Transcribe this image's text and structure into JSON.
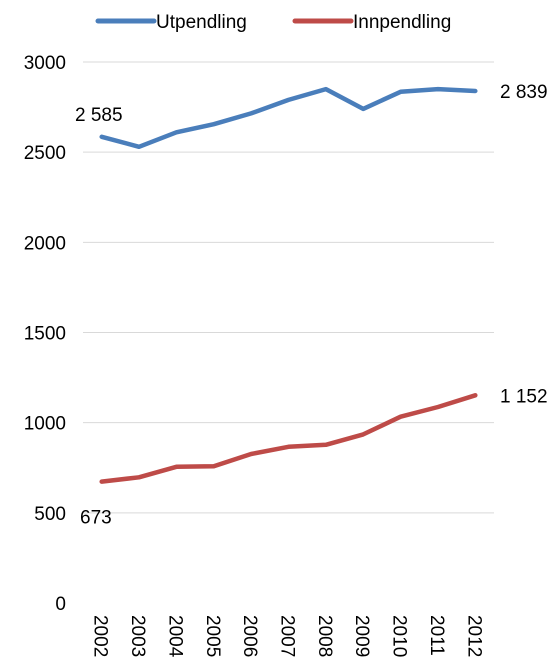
{
  "chart_data": {
    "type": "line",
    "title": "",
    "xlabel": "",
    "ylabel": "",
    "x": [
      "2002",
      "2003",
      "2004",
      "2005",
      "2006",
      "2007",
      "2008",
      "2009",
      "2010",
      "2011",
      "2012"
    ],
    "ylim": [
      0,
      3000
    ],
    "yticks": [
      0,
      500,
      1000,
      1500,
      2000,
      2500,
      3000
    ],
    "grid": true,
    "legend_position": "top",
    "series": [
      {
        "name": "Utpendling",
        "color": "#4a7ebb",
        "values": [
          2585,
          2530,
          2610,
          2655,
          2715,
          2790,
          2850,
          2740,
          2835,
          2850,
          2839
        ]
      },
      {
        "name": "Innpendling",
        "color": "#be4b48",
        "values": [
          673,
          697,
          755,
          758,
          826,
          866,
          877,
          935,
          1033,
          1087,
          1152
        ]
      }
    ],
    "annotations": [
      {
        "series": 0,
        "index": 0,
        "text": "2 585"
      },
      {
        "series": 0,
        "index": 10,
        "text": "2 839"
      },
      {
        "series": 1,
        "index": 0,
        "text": "673"
      },
      {
        "series": 1,
        "index": 10,
        "text": "1 152"
      }
    ]
  }
}
